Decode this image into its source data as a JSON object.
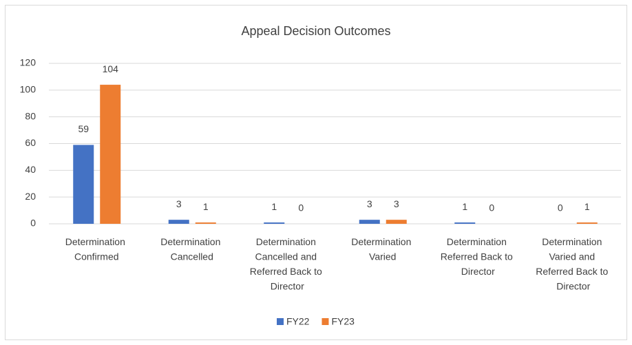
{
  "chart_data": {
    "type": "bar",
    "title": "Appeal Decision Outcomes",
    "categories": [
      "Determination Confirmed",
      "Determination Cancelled",
      "Determination Cancelled and Referred Back to Director",
      "Determination Varied",
      "Determination Referred Back to Director",
      "Determination Varied and Referred Back to Director"
    ],
    "series": [
      {
        "name": "FY22",
        "color": "#4472c4",
        "values": [
          59,
          3,
          1,
          3,
          1,
          0
        ]
      },
      {
        "name": "FY23",
        "color": "#ed7d31",
        "values": [
          104,
          1,
          0,
          3,
          0,
          1
        ]
      }
    ],
    "ylim": [
      0,
      120
    ],
    "yticks": [
      0,
      20,
      40,
      60,
      80,
      100,
      120
    ],
    "grid": true,
    "legend": "bottom"
  }
}
